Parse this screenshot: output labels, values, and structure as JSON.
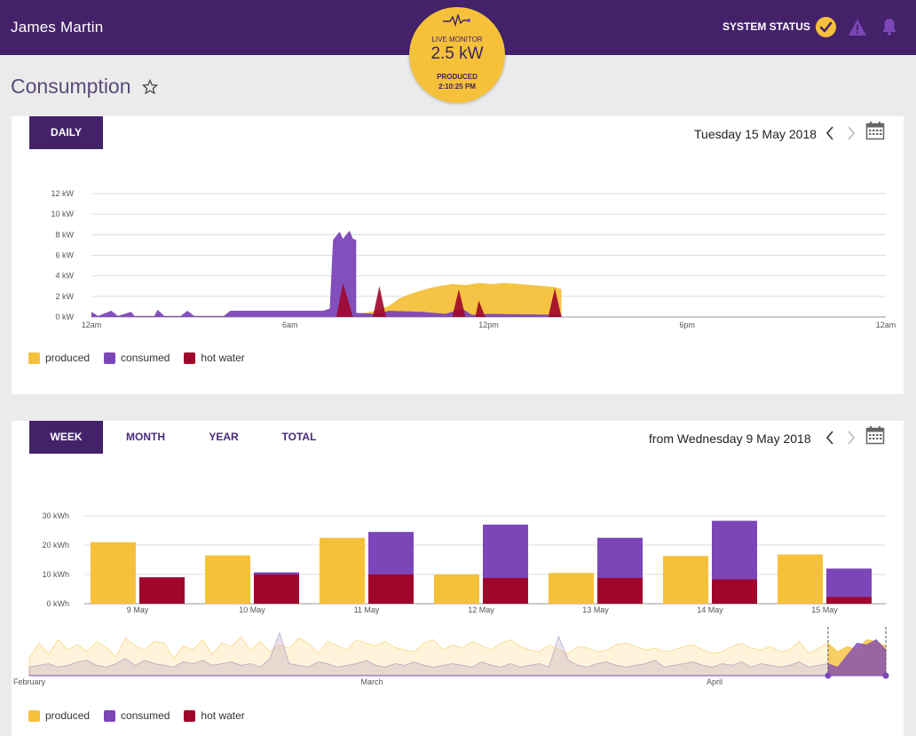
{
  "header": {
    "user_name": "James Martin",
    "system_status_label": "SYSTEM STATUS",
    "icons": [
      "check-circle-icon",
      "warning-icon",
      "bell-icon"
    ]
  },
  "live_monitor": {
    "label": "LIVE MONITOR",
    "value": "2.5 kW",
    "state": "PRODUCED",
    "time": "2:10:25 PM"
  },
  "page": {
    "title": "Consumption"
  },
  "colors": {
    "produced": "#f6c13a",
    "consumed": "#7c46b8",
    "hot_water": "#a0062b",
    "brand": "#44226a"
  },
  "daily": {
    "tab_label": "DAILY",
    "date_label": "Tuesday 15 May 2018",
    "legend": [
      "produced",
      "consumed",
      "hot water"
    ]
  },
  "weekly": {
    "tabs": [
      "WEEK",
      "MONTH",
      "YEAR",
      "TOTAL"
    ],
    "date_label": "from Wednesday 9 May 2018",
    "legend": [
      "produced",
      "consumed",
      "hot water"
    ]
  },
  "chart_data": [
    {
      "type": "area",
      "y_ticks": [
        "12 kW",
        "10 kW",
        "8 kW",
        "6 kW",
        "4 kW",
        "2 kW",
        "0 kW"
      ],
      "x_ticks": [
        "12am",
        "6am",
        "12pm",
        "6pm",
        "12am"
      ],
      "ylim": [
        0,
        12
      ],
      "x_hours_range": [
        0,
        24
      ],
      "series": [
        {
          "name": "produced",
          "points": [
            [
              7.7,
              0
            ],
            [
              8.1,
              0.3
            ],
            [
              8.6,
              0.6
            ],
            [
              9.0,
              1.1
            ],
            [
              9.3,
              1.8
            ],
            [
              9.6,
              2.2
            ],
            [
              9.9,
              2.5
            ],
            [
              10.2,
              2.8
            ],
            [
              10.5,
              3.0
            ],
            [
              10.9,
              3.2
            ],
            [
              11.3,
              3.1
            ],
            [
              11.7,
              3.3
            ],
            [
              12.1,
              3.2
            ],
            [
              12.5,
              3.3
            ],
            [
              12.9,
              3.2
            ],
            [
              13.3,
              3.1
            ],
            [
              13.7,
              3.0
            ],
            [
              14.0,
              2.9
            ],
            [
              14.2,
              2.7
            ],
            [
              14.2,
              0
            ]
          ]
        },
        {
          "name": "consumed",
          "points": [
            [
              0,
              0.5
            ],
            [
              0.2,
              0.1
            ],
            [
              0.6,
              0.6
            ],
            [
              0.8,
              0.1
            ],
            [
              1.2,
              0.5
            ],
            [
              1.3,
              0.1
            ],
            [
              1.9,
              0.1
            ],
            [
              2.0,
              0.7
            ],
            [
              2.2,
              0.1
            ],
            [
              2.7,
              0.1
            ],
            [
              2.9,
              0.6
            ],
            [
              3.1,
              0.1
            ],
            [
              4.0,
              0.1
            ],
            [
              4.2,
              0.6
            ],
            [
              7.0,
              0.6
            ],
            [
              7.2,
              0.8
            ],
            [
              7.3,
              7.5
            ],
            [
              7.5,
              8.3
            ],
            [
              7.6,
              7.6
            ],
            [
              7.8,
              8.4
            ],
            [
              7.9,
              7.6
            ],
            [
              8.0,
              7.5
            ],
            [
              8.0,
              0.4
            ],
            [
              8.6,
              0.3
            ],
            [
              9.0,
              0.6
            ],
            [
              10.0,
              0.5
            ],
            [
              10.7,
              0.3
            ],
            [
              11.2,
              0.8
            ],
            [
              11.5,
              0.2
            ],
            [
              12.0,
              0.3
            ],
            [
              14.2,
              0.2
            ],
            [
              14.2,
              0
            ]
          ]
        },
        {
          "name": "hot water",
          "points": [
            [
              7.4,
              0
            ],
            [
              7.6,
              3.3
            ],
            [
              7.9,
              0
            ],
            [
              8.5,
              0
            ],
            [
              8.7,
              3.0
            ],
            [
              8.9,
              0
            ],
            [
              10.9,
              0
            ],
            [
              11.1,
              2.7
            ],
            [
              11.3,
              0
            ],
            [
              11.6,
              0
            ],
            [
              11.7,
              1.6
            ],
            [
              11.9,
              0
            ],
            [
              13.8,
              0
            ],
            [
              14.0,
              2.8
            ],
            [
              14.2,
              0
            ]
          ]
        }
      ]
    },
    {
      "type": "bar",
      "y_ticks": [
        "30 kWh",
        "20 kWh",
        "10 kWh",
        "0 kWh"
      ],
      "ylim": [
        0,
        30
      ],
      "categories": [
        "9 May",
        "10 May",
        "11 May",
        "12 May",
        "13 May",
        "14 May",
        "15 May"
      ],
      "series": [
        {
          "name": "produced",
          "values": [
            21,
            16.5,
            22.5,
            10,
            10.5,
            16.3,
            16.8
          ]
        },
        {
          "name": "consumed",
          "values": [
            9,
            10.7,
            24.5,
            27,
            22.5,
            28.3,
            12
          ]
        },
        {
          "name": "hot water",
          "values": [
            9,
            10,
            10,
            8.8,
            8.8,
            8.3,
            2.3
          ]
        }
      ]
    },
    {
      "type": "area",
      "x_ticks": [
        "February",
        "March",
        "April"
      ],
      "series": [
        {
          "name": "produced",
          "values": [
            20,
            38,
            25,
            42,
            30,
            36,
            28,
            40,
            33,
            22,
            44,
            35,
            30,
            40,
            38,
            20,
            35,
            30,
            42,
            25,
            38,
            34,
            45,
            30,
            40,
            28,
            36,
            32,
            44,
            38,
            26,
            40,
            35,
            30,
            42,
            38,
            35,
            40,
            33,
            30,
            28,
            38,
            42,
            30,
            36,
            32,
            40,
            35,
            30,
            38,
            42,
            34,
            30,
            28,
            36,
            30,
            26,
            34,
            32,
            28,
            30,
            36,
            38,
            34,
            30,
            32,
            28,
            30,
            34,
            36,
            30,
            26,
            28,
            34,
            38,
            32,
            30,
            34,
            28,
            30,
            40,
            26,
            32,
            38,
            28,
            34,
            30,
            42,
            40,
            34
          ]
        },
        {
          "name": "consumed",
          "values": [
            10,
            12,
            14,
            10,
            12,
            16,
            18,
            12,
            10,
            14,
            20,
            12,
            18,
            14,
            12,
            10,
            16,
            14,
            18,
            12,
            14,
            16,
            12,
            14,
            10,
            20,
            50,
            14,
            12,
            10,
            16,
            14,
            10,
            12,
            14,
            18,
            12,
            10,
            14,
            12,
            16,
            12,
            10,
            12,
            14,
            12,
            10,
            16,
            12,
            10,
            14,
            10,
            12,
            14,
            10,
            46,
            18,
            12,
            10,
            14,
            16,
            12,
            10,
            12,
            14,
            18,
            10,
            12,
            14,
            16,
            12,
            10,
            14,
            12,
            16,
            10,
            14,
            12,
            10,
            12,
            16,
            10,
            12,
            14,
            10,
            24,
            38,
            36,
            42,
            30
          ]
        }
      ]
    }
  ]
}
